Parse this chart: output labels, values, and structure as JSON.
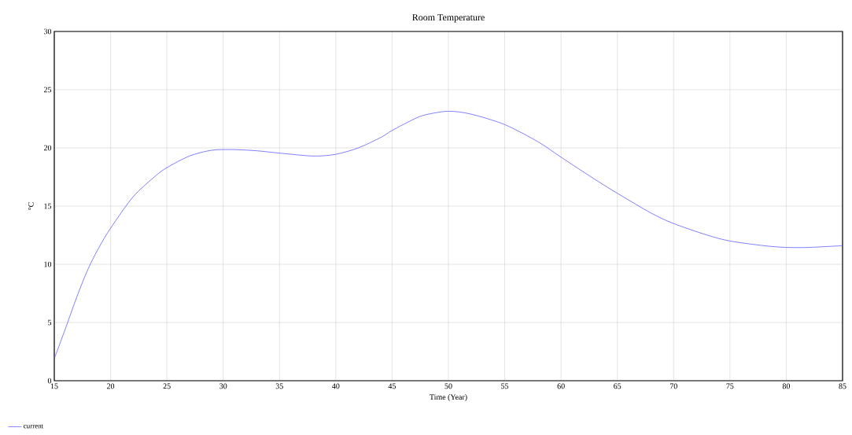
{
  "chart_data": {
    "type": "line",
    "title": "Room Temperature",
    "xlabel": "Time (Year)",
    "ylabel": "°C",
    "x": [
      15,
      16,
      17,
      18,
      19,
      20,
      22,
      24,
      25,
      27,
      29,
      31,
      33,
      35,
      38,
      40,
      42,
      44,
      45,
      47,
      48,
      50,
      52,
      55,
      58,
      60,
      63,
      65,
      68,
      70,
      73,
      75,
      78,
      80,
      82,
      85
    ],
    "series": [
      {
        "name": "current",
        "color": "#4a4aff",
        "values": [
          1.9,
          4.5,
          7.2,
          9.6,
          11.5,
          13.1,
          15.8,
          17.6,
          18.3,
          19.3,
          19.8,
          19.85,
          19.75,
          19.55,
          19.3,
          19.45,
          20.0,
          20.9,
          21.5,
          22.5,
          22.85,
          23.15,
          22.9,
          22.0,
          20.5,
          19.2,
          17.3,
          16.1,
          14.4,
          13.5,
          12.5,
          12.0,
          11.6,
          11.45,
          11.45,
          11.6
        ]
      }
    ],
    "xlim": [
      15,
      85
    ],
    "ylim": [
      0,
      30
    ],
    "xticks": [
      15,
      20,
      25,
      30,
      35,
      40,
      45,
      50,
      55,
      60,
      65,
      70,
      75,
      80,
      85
    ],
    "yticks": [
      0,
      5,
      10,
      15,
      20,
      25,
      30
    ],
    "grid": true,
    "legend": "bottom left",
    "marker": "none",
    "line_style": "solid"
  }
}
